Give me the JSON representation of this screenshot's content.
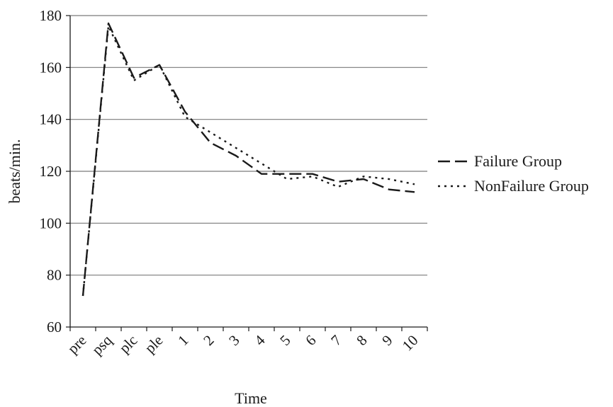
{
  "chart_data": {
    "type": "line",
    "categories": [
      "pre",
      "psq",
      "plc",
      "ple",
      "1",
      "2",
      "3",
      "4",
      "5",
      "6",
      "7",
      "8",
      "9",
      "10"
    ],
    "series": [
      {
        "name": "Failure Group",
        "values": [
          72,
          177,
          156,
          161,
          143,
          131,
          126,
          119,
          119,
          119,
          116,
          117,
          113,
          112
        ],
        "color": "#1a1a1a",
        "dash": "long-dash"
      },
      {
        "name": "NonFailure Group",
        "values": [
          72,
          176,
          155,
          161,
          141,
          135,
          129,
          123,
          117,
          118,
          114,
          118,
          117,
          115
        ],
        "color": "#1a1a1a",
        "dash": "dotted"
      }
    ],
    "title": "",
    "xlabel": "Time",
    "ylabel": "beats/min.",
    "ylim": [
      60,
      180
    ],
    "yticks": [
      60,
      80,
      100,
      120,
      140,
      160,
      180
    ],
    "grid": "horizontal",
    "legend": "right"
  }
}
